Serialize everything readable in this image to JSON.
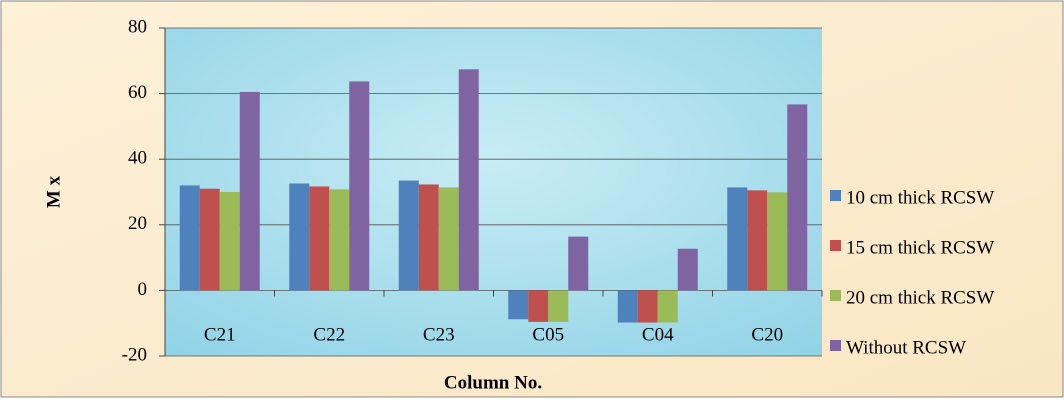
{
  "chart_data": {
    "type": "bar",
    "x_label": "Column No.",
    "y_label": "M x",
    "categories": [
      "C21",
      "C22",
      "C23",
      "C05",
      "C04",
      "C20"
    ],
    "series": [
      {
        "name": "10 cm thick RCSW",
        "color": "#4f81bd",
        "values": [
          32,
          32.6,
          33.5,
          -8.8,
          -9.8,
          31.4
        ]
      },
      {
        "name": "15 cm thick RCSW",
        "color": "#c0504d",
        "values": [
          31,
          31.7,
          32.3,
          -9.6,
          -9.8,
          30.5
        ]
      },
      {
        "name": "20 cm thick RCSW",
        "color": "#9bbb59",
        "values": [
          30,
          30.8,
          31.4,
          -9.6,
          -9.8,
          29.9
        ]
      },
      {
        "name": "Without RCSW",
        "color": "#8064a2",
        "values": [
          60.5,
          63.7,
          67.4,
          16.4,
          12.7,
          56.7
        ]
      }
    ],
    "ylim": [
      -20,
      80
    ],
    "yticks": [
      -20,
      0,
      20,
      40,
      60,
      80
    ],
    "grid": true,
    "legend": "right"
  }
}
